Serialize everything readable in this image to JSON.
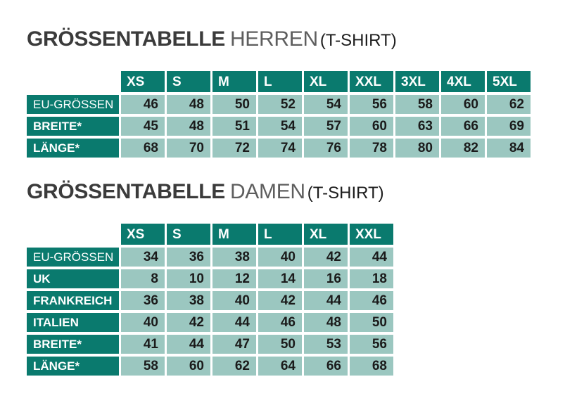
{
  "colors": {
    "teal": "#0a7a6e",
    "light_teal": "#9bc7c0",
    "header_text": "#ffffff",
    "value_text": "#1b1b1b",
    "title_main": "#3b3b3b",
    "title_sub": "#5e5e5e"
  },
  "sections": [
    {
      "title_main": "GRÖSSENTABELLE",
      "title_sub": "HERREN",
      "title_note": "(T-SHIRT)",
      "table": {
        "columns": [
          "XS",
          "S",
          "M",
          "L",
          "XL",
          "XXL",
          "3XL",
          "4XL",
          "5XL"
        ],
        "rows": [
          {
            "label": "EU-GRÖSSEN",
            "bold": false,
            "group_break": false,
            "values": [
              46,
              48,
              50,
              52,
              54,
              56,
              58,
              60,
              62
            ]
          },
          {
            "label": "BREITE*",
            "bold": true,
            "group_break": false,
            "values": [
              45,
              48,
              51,
              54,
              57,
              60,
              63,
              66,
              69
            ]
          },
          {
            "label": "LÄNGE*",
            "bold": true,
            "group_break": false,
            "values": [
              68,
              70,
              72,
              74,
              76,
              78,
              80,
              82,
              84
            ]
          }
        ]
      }
    },
    {
      "title_main": "GRÖSSENTABELLE",
      "title_sub": "DAMEN",
      "title_note": "(T-SHIRT)",
      "table": {
        "columns": [
          "XS",
          "S",
          "M",
          "L",
          "XL",
          "XXL"
        ],
        "rows": [
          {
            "label": "EU-GRÖSSEN",
            "bold": false,
            "group_break": false,
            "values": [
              34,
              36,
              38,
              40,
              42,
              44
            ]
          },
          {
            "label": "UK",
            "bold": true,
            "group_break": false,
            "values": [
              8,
              10,
              12,
              14,
              16,
              18
            ]
          },
          {
            "label": "FRANKREICH",
            "bold": true,
            "group_break": false,
            "values": [
              36,
              38,
              40,
              42,
              44,
              46
            ]
          },
          {
            "label": "ITALIEN",
            "bold": true,
            "group_break": false,
            "values": [
              40,
              42,
              44,
              46,
              48,
              50
            ]
          },
          {
            "label": "BREITE*",
            "bold": true,
            "group_break": true,
            "values": [
              41,
              44,
              47,
              50,
              53,
              56
            ]
          },
          {
            "label": "LÄNGE*",
            "bold": true,
            "group_break": false,
            "values": [
              58,
              60,
              62,
              64,
              66,
              68
            ]
          }
        ]
      }
    }
  ]
}
